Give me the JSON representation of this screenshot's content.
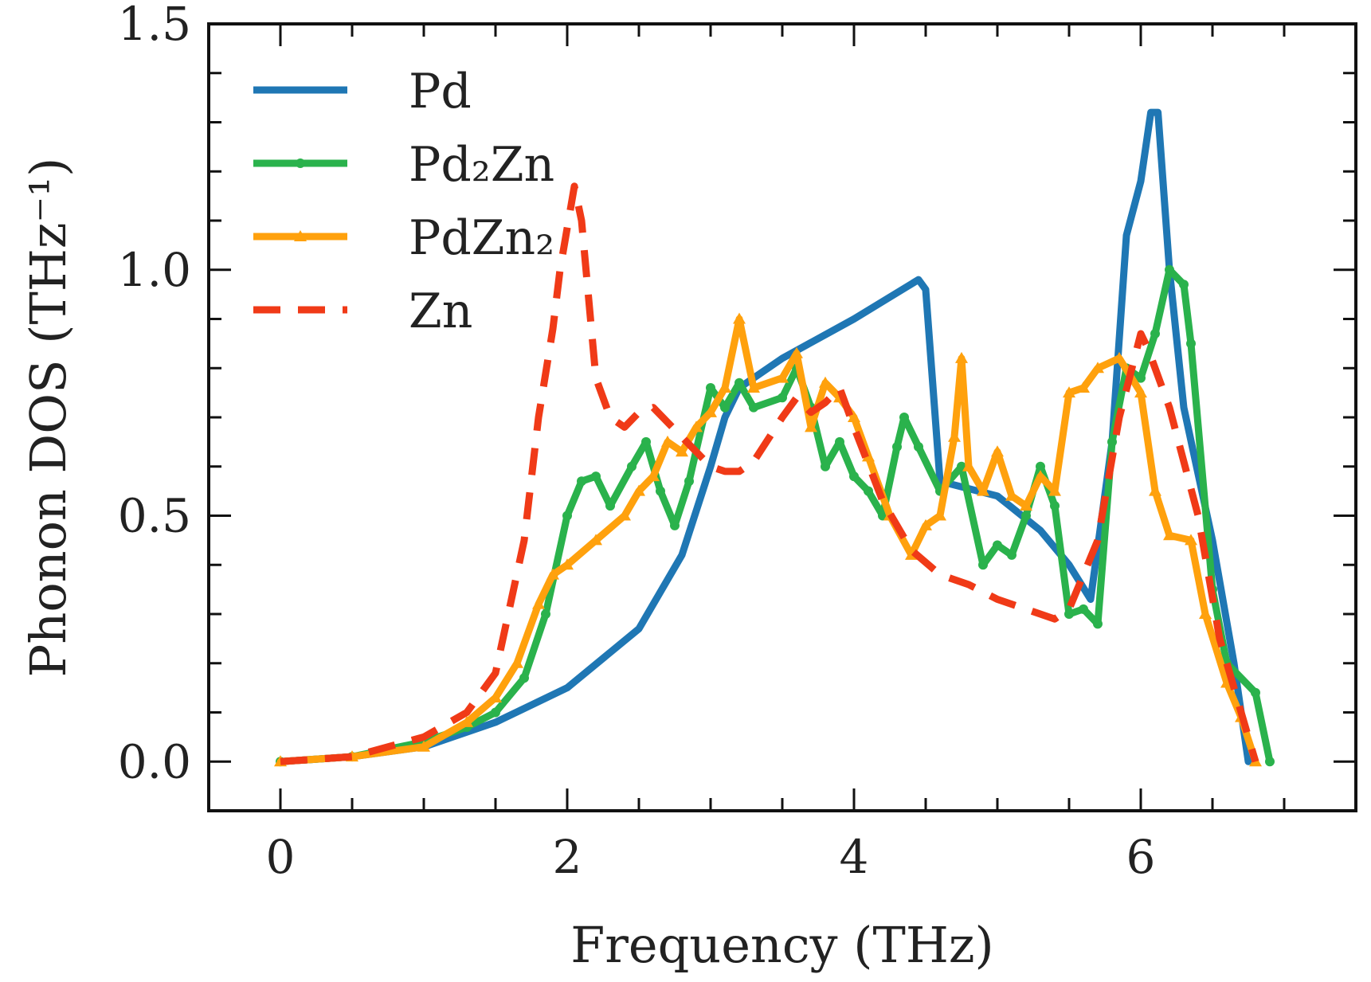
{
  "chart_data": {
    "type": "line",
    "xlabel": "Frequency (THz)",
    "ylabel": "Phonon DOS (THz⁻¹)",
    "xlim": [
      -0.5,
      7.5
    ],
    "ylim": [
      -0.1,
      1.5
    ],
    "x_ticks": [
      0,
      2,
      4,
      6
    ],
    "x_tick_labels": [
      "0",
      "2",
      "4",
      "6"
    ],
    "y_ticks": [
      0.0,
      0.5,
      1.0,
      1.5
    ],
    "y_tick_labels": [
      "0.0",
      "0.5",
      "1.0",
      "1.5"
    ],
    "x_minor_step": 0.5,
    "y_minor_step": 0.1,
    "grid": false,
    "legend_position": "top-left",
    "series": [
      {
        "name": "Pd",
        "color": "#1f77b4",
        "style": "solid",
        "marker": "none",
        "points": [
          [
            0,
            0
          ],
          [
            0.5,
            0.01
          ],
          [
            1.0,
            0.03
          ],
          [
            1.5,
            0.08
          ],
          [
            2.0,
            0.15
          ],
          [
            2.5,
            0.27
          ],
          [
            2.8,
            0.42
          ],
          [
            3.0,
            0.6
          ],
          [
            3.1,
            0.7
          ],
          [
            3.2,
            0.76
          ],
          [
            3.5,
            0.82
          ],
          [
            4.0,
            0.9
          ],
          [
            4.45,
            0.98
          ],
          [
            4.5,
            0.96
          ],
          [
            4.6,
            0.57
          ],
          [
            5.0,
            0.54
          ],
          [
            5.3,
            0.47
          ],
          [
            5.5,
            0.4
          ],
          [
            5.65,
            0.33
          ],
          [
            5.8,
            0.65
          ],
          [
            5.9,
            1.07
          ],
          [
            6.0,
            1.18
          ],
          [
            6.07,
            1.32
          ],
          [
            6.12,
            1.32
          ],
          [
            6.2,
            1.0
          ],
          [
            6.3,
            0.72
          ],
          [
            6.5,
            0.45
          ],
          [
            6.65,
            0.2
          ],
          [
            6.75,
            0.0
          ]
        ]
      },
      {
        "name": "Pd₂Zn",
        "color": "#2ab24c",
        "style": "solid",
        "marker": "circle",
        "points": [
          [
            0,
            0
          ],
          [
            0.5,
            0.01
          ],
          [
            1.0,
            0.04
          ],
          [
            1.3,
            0.07
          ],
          [
            1.5,
            0.1
          ],
          [
            1.7,
            0.17
          ],
          [
            1.85,
            0.3
          ],
          [
            2.0,
            0.5
          ],
          [
            2.1,
            0.57
          ],
          [
            2.2,
            0.58
          ],
          [
            2.3,
            0.52
          ],
          [
            2.45,
            0.6
          ],
          [
            2.55,
            0.65
          ],
          [
            2.65,
            0.55
          ],
          [
            2.75,
            0.48
          ],
          [
            2.85,
            0.57
          ],
          [
            3.0,
            0.76
          ],
          [
            3.1,
            0.72
          ],
          [
            3.2,
            0.77
          ],
          [
            3.3,
            0.72
          ],
          [
            3.5,
            0.74
          ],
          [
            3.6,
            0.8
          ],
          [
            3.7,
            0.72
          ],
          [
            3.8,
            0.6
          ],
          [
            3.9,
            0.65
          ],
          [
            4.0,
            0.58
          ],
          [
            4.1,
            0.55
          ],
          [
            4.2,
            0.5
          ],
          [
            4.3,
            0.64
          ],
          [
            4.35,
            0.7
          ],
          [
            4.45,
            0.64
          ],
          [
            4.6,
            0.55
          ],
          [
            4.75,
            0.6
          ],
          [
            4.9,
            0.4
          ],
          [
            5.0,
            0.44
          ],
          [
            5.1,
            0.42
          ],
          [
            5.2,
            0.5
          ],
          [
            5.3,
            0.6
          ],
          [
            5.4,
            0.52
          ],
          [
            5.5,
            0.3
          ],
          [
            5.6,
            0.31
          ],
          [
            5.7,
            0.28
          ],
          [
            5.8,
            0.65
          ],
          [
            5.9,
            0.8
          ],
          [
            6.0,
            0.78
          ],
          [
            6.1,
            0.87
          ],
          [
            6.2,
            1.0
          ],
          [
            6.3,
            0.97
          ],
          [
            6.35,
            0.85
          ],
          [
            6.5,
            0.35
          ],
          [
            6.6,
            0.2
          ],
          [
            6.8,
            0.14
          ],
          [
            6.9,
            0.0
          ]
        ]
      },
      {
        "name": "PdZn₂",
        "color": "#ffa10d",
        "style": "solid",
        "marker": "triangle",
        "points": [
          [
            0,
            0
          ],
          [
            0.5,
            0.01
          ],
          [
            1.0,
            0.03
          ],
          [
            1.3,
            0.08
          ],
          [
            1.5,
            0.13
          ],
          [
            1.65,
            0.2
          ],
          [
            1.8,
            0.32
          ],
          [
            1.9,
            0.38
          ],
          [
            2.0,
            0.4
          ],
          [
            2.2,
            0.45
          ],
          [
            2.4,
            0.5
          ],
          [
            2.5,
            0.55
          ],
          [
            2.6,
            0.58
          ],
          [
            2.7,
            0.65
          ],
          [
            2.8,
            0.63
          ],
          [
            2.9,
            0.68
          ],
          [
            3.0,
            0.71
          ],
          [
            3.1,
            0.76
          ],
          [
            3.2,
            0.9
          ],
          [
            3.3,
            0.76
          ],
          [
            3.5,
            0.78
          ],
          [
            3.6,
            0.83
          ],
          [
            3.7,
            0.68
          ],
          [
            3.8,
            0.77
          ],
          [
            3.9,
            0.74
          ],
          [
            4.0,
            0.7
          ],
          [
            4.1,
            0.62
          ],
          [
            4.25,
            0.5
          ],
          [
            4.4,
            0.42
          ],
          [
            4.5,
            0.48
          ],
          [
            4.6,
            0.5
          ],
          [
            4.7,
            0.66
          ],
          [
            4.75,
            0.82
          ],
          [
            4.8,
            0.6
          ],
          [
            4.9,
            0.55
          ],
          [
            5.0,
            0.63
          ],
          [
            5.1,
            0.54
          ],
          [
            5.2,
            0.52
          ],
          [
            5.3,
            0.58
          ],
          [
            5.4,
            0.55
          ],
          [
            5.5,
            0.75
          ],
          [
            5.6,
            0.76
          ],
          [
            5.7,
            0.8
          ],
          [
            5.85,
            0.82
          ],
          [
            6.0,
            0.75
          ],
          [
            6.1,
            0.55
          ],
          [
            6.2,
            0.46
          ],
          [
            6.35,
            0.45
          ],
          [
            6.45,
            0.3
          ],
          [
            6.6,
            0.16
          ],
          [
            6.7,
            0.09
          ],
          [
            6.8,
            0.0
          ]
        ]
      },
      {
        "name": "Zn",
        "color": "#f03a17",
        "style": "dashed",
        "marker": "none",
        "points": [
          [
            0,
            0
          ],
          [
            0.5,
            0.01
          ],
          [
            1.0,
            0.05
          ],
          [
            1.3,
            0.1
          ],
          [
            1.5,
            0.18
          ],
          [
            1.7,
            0.45
          ],
          [
            1.8,
            0.7
          ],
          [
            1.9,
            0.88
          ],
          [
            1.95,
            1.0
          ],
          [
            2.05,
            1.17
          ],
          [
            2.1,
            1.1
          ],
          [
            2.2,
            0.78
          ],
          [
            2.3,
            0.7
          ],
          [
            2.4,
            0.68
          ],
          [
            2.5,
            0.71
          ],
          [
            2.6,
            0.72
          ],
          [
            2.8,
            0.66
          ],
          [
            3.0,
            0.6
          ],
          [
            3.1,
            0.59
          ],
          [
            3.2,
            0.59
          ],
          [
            3.3,
            0.61
          ],
          [
            3.5,
            0.7
          ],
          [
            3.6,
            0.74
          ],
          [
            3.7,
            0.71
          ],
          [
            3.8,
            0.73
          ],
          [
            3.9,
            0.76
          ],
          [
            4.0,
            0.68
          ],
          [
            4.2,
            0.53
          ],
          [
            4.4,
            0.43
          ],
          [
            4.6,
            0.38
          ],
          [
            4.8,
            0.36
          ],
          [
            5.0,
            0.33
          ],
          [
            5.2,
            0.31
          ],
          [
            5.4,
            0.29
          ],
          [
            5.5,
            0.31
          ],
          [
            5.7,
            0.45
          ],
          [
            5.85,
            0.7
          ],
          [
            6.0,
            0.87
          ],
          [
            6.05,
            0.84
          ],
          [
            6.2,
            0.72
          ],
          [
            6.4,
            0.5
          ],
          [
            6.55,
            0.25
          ],
          [
            6.7,
            0.1
          ],
          [
            6.8,
            0.0
          ]
        ]
      }
    ]
  }
}
